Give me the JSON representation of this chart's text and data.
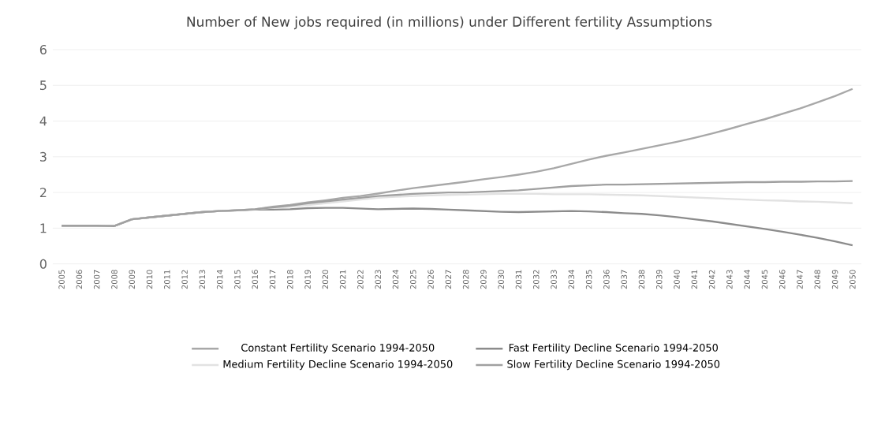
{
  "chart_data": {
    "type": "line",
    "title": "Number of New jobs required (in millions) under Different fertility Assumptions",
    "categories": [
      "2005",
      "2006",
      "2007",
      "2008",
      "2009",
      "2010",
      "2011",
      "2012",
      "2013",
      "2014",
      "2015",
      "2016",
      "2017",
      "2018",
      "2019",
      "2020",
      "2021",
      "2022",
      "2023",
      "2024",
      "2025",
      "2026",
      "2027",
      "2028",
      "2029",
      "2030",
      "2031",
      "2032",
      "2033",
      "2034",
      "2035",
      "2036",
      "2037",
      "2038",
      "2039",
      "2040",
      "2041",
      "2042",
      "2043",
      "2044",
      "2045",
      "2046",
      "2047",
      "2048",
      "2049",
      "2050"
    ],
    "ylim": [
      0,
      6
    ],
    "yticks": [
      0,
      1,
      2,
      3,
      4,
      5,
      6
    ],
    "grid": "y",
    "legend": "bottom",
    "marker": "none",
    "series": [
      {
        "name": "Constant Fertility Scenario 1994-2050",
        "color": "#a8a8a8",
        "values": [
          1.07,
          1.07,
          1.07,
          1.06,
          1.25,
          1.3,
          1.35,
          1.4,
          1.45,
          1.48,
          1.5,
          1.53,
          1.6,
          1.65,
          1.72,
          1.78,
          1.85,
          1.9,
          1.97,
          2.05,
          2.12,
          2.18,
          2.24,
          2.3,
          2.37,
          2.43,
          2.5,
          2.58,
          2.68,
          2.8,
          2.92,
          3.03,
          3.12,
          3.22,
          3.32,
          3.42,
          3.53,
          3.65,
          3.78,
          3.92,
          4.05,
          4.2,
          4.35,
          4.52,
          4.7,
          4.9
        ]
      },
      {
        "name": "Fast Fertility Decline Scenario 1994-2050",
        "color": "#8c8c8c",
        "values": [
          1.07,
          1.07,
          1.07,
          1.06,
          1.25,
          1.3,
          1.35,
          1.4,
          1.45,
          1.48,
          1.5,
          1.52,
          1.52,
          1.53,
          1.56,
          1.57,
          1.57,
          1.55,
          1.53,
          1.54,
          1.55,
          1.54,
          1.52,
          1.5,
          1.48,
          1.46,
          1.45,
          1.46,
          1.47,
          1.48,
          1.47,
          1.45,
          1.42,
          1.4,
          1.36,
          1.31,
          1.25,
          1.19,
          1.12,
          1.05,
          0.98,
          0.9,
          0.82,
          0.73,
          0.63,
          0.52
        ]
      },
      {
        "name": "Medium Fertility Decline Scenario 1994-2050",
        "color": "#e2e2e2",
        "values": [
          1.07,
          1.07,
          1.07,
          1.06,
          1.25,
          1.3,
          1.35,
          1.4,
          1.45,
          1.48,
          1.5,
          1.53,
          1.57,
          1.6,
          1.65,
          1.7,
          1.75,
          1.8,
          1.85,
          1.88,
          1.9,
          1.92,
          1.93,
          1.94,
          1.95,
          1.96,
          1.96,
          1.96,
          1.95,
          1.95,
          1.95,
          1.94,
          1.93,
          1.92,
          1.9,
          1.88,
          1.86,
          1.84,
          1.82,
          1.8,
          1.78,
          1.77,
          1.75,
          1.74,
          1.72,
          1.7
        ]
      },
      {
        "name": "Slow Fertility Decline Scenario 1994-2050",
        "color": "#a0a0a0",
        "values": [
          1.07,
          1.07,
          1.07,
          1.06,
          1.25,
          1.3,
          1.35,
          1.4,
          1.45,
          1.48,
          1.5,
          1.53,
          1.58,
          1.63,
          1.7,
          1.75,
          1.8,
          1.85,
          1.9,
          1.93,
          1.96,
          1.98,
          2.0,
          2.0,
          2.02,
          2.04,
          2.06,
          2.1,
          2.14,
          2.18,
          2.2,
          2.22,
          2.22,
          2.23,
          2.24,
          2.25,
          2.26,
          2.27,
          2.28,
          2.29,
          2.29,
          2.3,
          2.3,
          2.31,
          2.31,
          2.32
        ]
      }
    ]
  }
}
